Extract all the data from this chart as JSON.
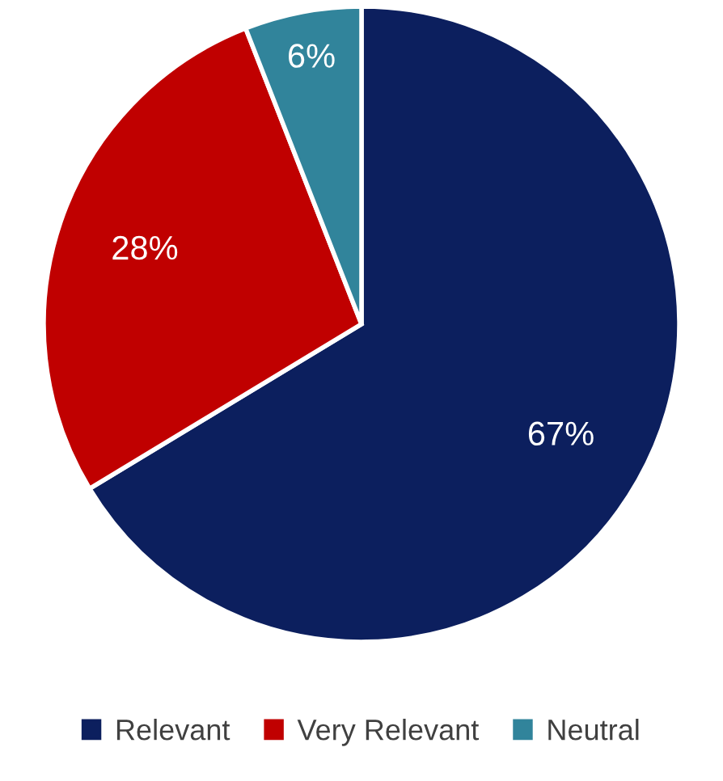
{
  "chart_data": {
    "type": "pie",
    "categories": [
      "Relevant",
      "Very Relevant",
      "Neutral"
    ],
    "values": [
      67,
      28,
      6
    ],
    "colors": [
      "#0c1f5e",
      "#c00000",
      "#31849b"
    ],
    "value_labels": [
      "67%",
      "28%",
      "6%"
    ],
    "legend": "bottom"
  }
}
